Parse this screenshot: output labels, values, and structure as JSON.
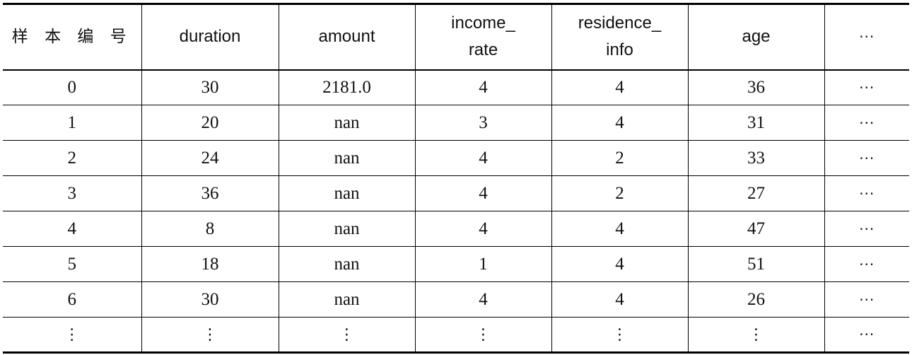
{
  "table": {
    "headers": [
      [
        "样 本 编 号"
      ],
      [
        "duration"
      ],
      [
        "amount"
      ],
      [
        "income_",
        "rate"
      ],
      [
        "residence_",
        "info"
      ],
      [
        "age"
      ],
      [
        "···"
      ]
    ],
    "rows": [
      [
        "0",
        "30",
        "2181.0",
        "4",
        "4",
        "36",
        "···"
      ],
      [
        "1",
        "20",
        "nan",
        "3",
        "4",
        "31",
        "···"
      ],
      [
        "2",
        "24",
        "nan",
        "4",
        "2",
        "33",
        "···"
      ],
      [
        "3",
        "36",
        "nan",
        "4",
        "2",
        "27",
        "···"
      ],
      [
        "4",
        "8",
        "nan",
        "4",
        "4",
        "47",
        "···"
      ],
      [
        "5",
        "18",
        "nan",
        "1",
        "4",
        "51",
        "···"
      ],
      [
        "6",
        "30",
        "nan",
        "4",
        "4",
        "26",
        "···"
      ],
      [
        "⋮",
        "⋮",
        "⋮",
        "⋮",
        "⋮",
        "⋮",
        "···"
      ]
    ]
  }
}
